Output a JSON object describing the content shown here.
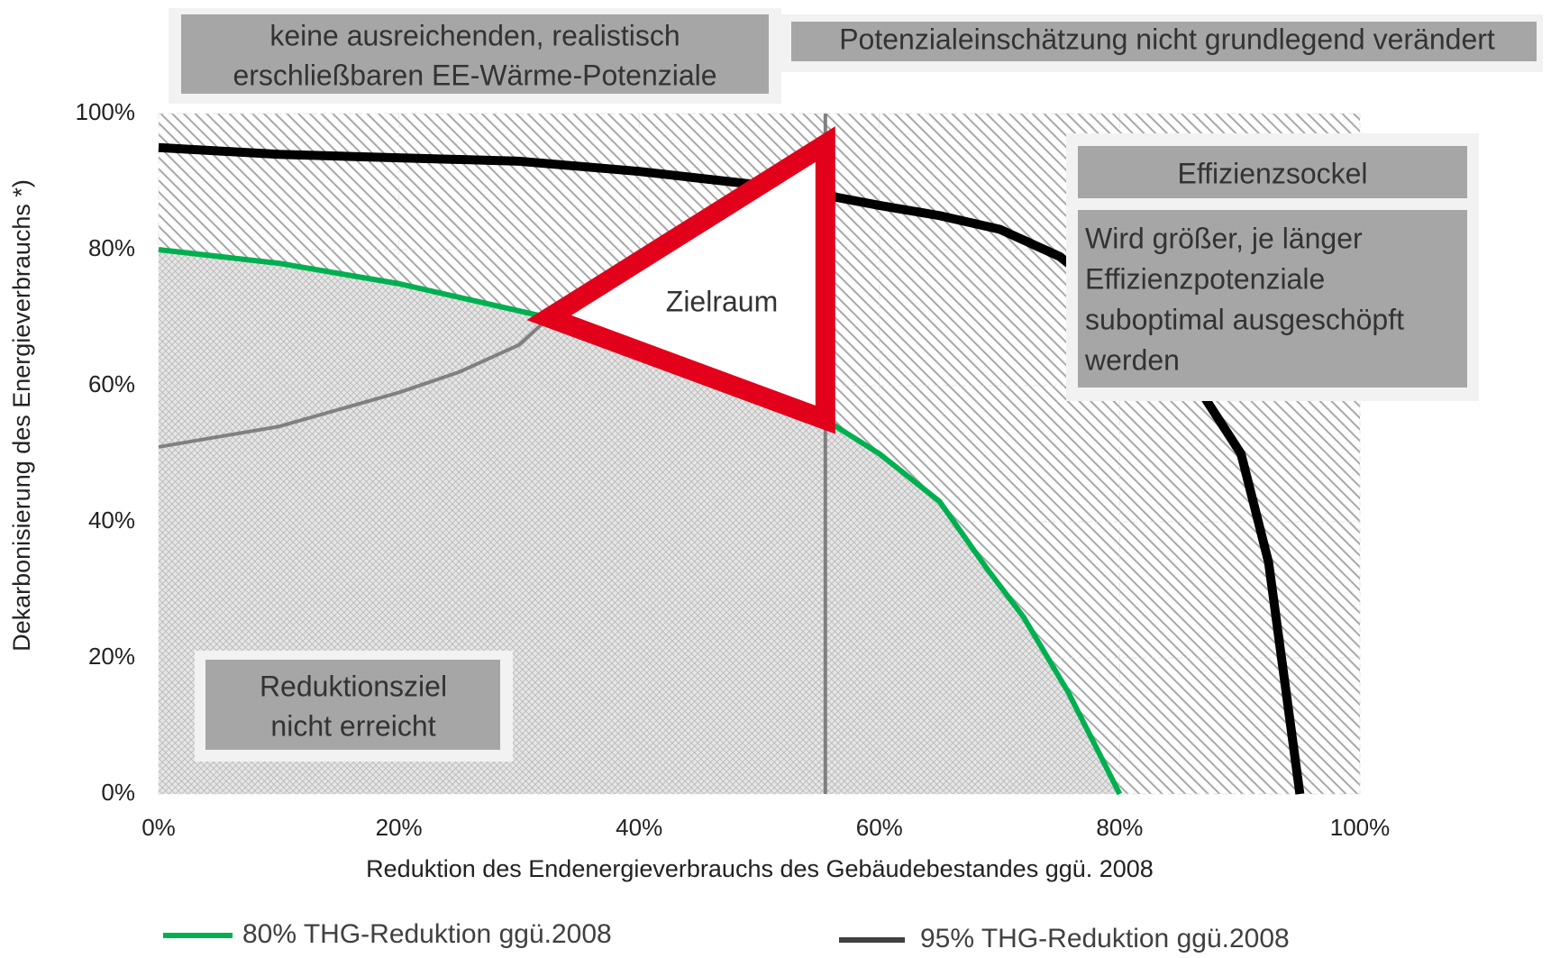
{
  "chart_data": {
    "type": "line",
    "xlabel": "Reduktion des Endenergieverbrauchs des Gebäudebestandes ggü. 2008",
    "ylabel": "Dekarbonisierung des Energieverbrauchs *)",
    "xlim": [
      0,
      100
    ],
    "ylim": [
      0,
      100
    ],
    "xticks": [
      {
        "value": 0,
        "label": "0%"
      },
      {
        "value": 20,
        "label": "20%"
      },
      {
        "value": 40,
        "label": "40%"
      },
      {
        "value": 60,
        "label": "60%"
      },
      {
        "value": 80,
        "label": "80%"
      },
      {
        "value": 100,
        "label": "100%"
      }
    ],
    "yticks": [
      {
        "value": 0,
        "label": "0%"
      },
      {
        "value": 20,
        "label": "20%"
      },
      {
        "value": 40,
        "label": "40%"
      },
      {
        "value": 60,
        "label": "60%"
      },
      {
        "value": 80,
        "label": "80%"
      },
      {
        "value": 100,
        "label": "100%"
      }
    ],
    "grid": true,
    "legend": "bottom",
    "series": [
      {
        "name": "80% THG-Reduktion ggü.2008",
        "color": "#00b050",
        "x": [
          0,
          10,
          20,
          30,
          32.5,
          40,
          50,
          55.5,
          60,
          65,
          69,
          72,
          75.7,
          78,
          80
        ],
        "values": [
          80,
          78,
          75,
          71,
          70,
          67,
          61,
          55,
          50,
          43,
          33,
          26,
          15,
          7,
          0
        ]
      },
      {
        "name": "95% THG-Reduktion ggü.2008",
        "color": "#000000",
        "legend_color": "#404040",
        "x": [
          0,
          10,
          20,
          30,
          40,
          50,
          55.5,
          60,
          65,
          70,
          75,
          80,
          86.8,
          90.1,
          92.4,
          95
        ],
        "values": [
          95,
          94,
          93.5,
          93,
          91.5,
          89.5,
          88,
          86.5,
          85,
          83,
          79,
          72,
          59,
          50,
          34,
          0
        ]
      },
      {
        "color": "#808080",
        "x": [
          0,
          10,
          20,
          25,
          30,
          32.5
        ],
        "values": [
          51,
          54,
          59,
          62,
          66,
          70
        ]
      }
    ],
    "marker_x": 55.5,
    "marker_color": "#808080",
    "target_zone": {
      "label": "Zielraum",
      "color": "#e2001a",
      "x": [
        32.5,
        55.5,
        55.5
      ],
      "values": [
        70,
        95.5,
        55
      ]
    },
    "annotations": {
      "top_left": [
        "keine ausreichenden, realistisch",
        "erschließbaren EE-Wärme-Potenziale"
      ],
      "top_right": "Potenzialeinschätzung nicht grundlegend verändert",
      "efficiency_title": "Effizienzsockel",
      "efficiency_text": [
        "Wird größer, je länger",
        "Effizienzpotenziale",
        "suboptimal ausgeschöpft",
        "werden"
      ],
      "not_reached": [
        "Reduktionsziel",
        "nicht erreicht"
      ]
    }
  }
}
